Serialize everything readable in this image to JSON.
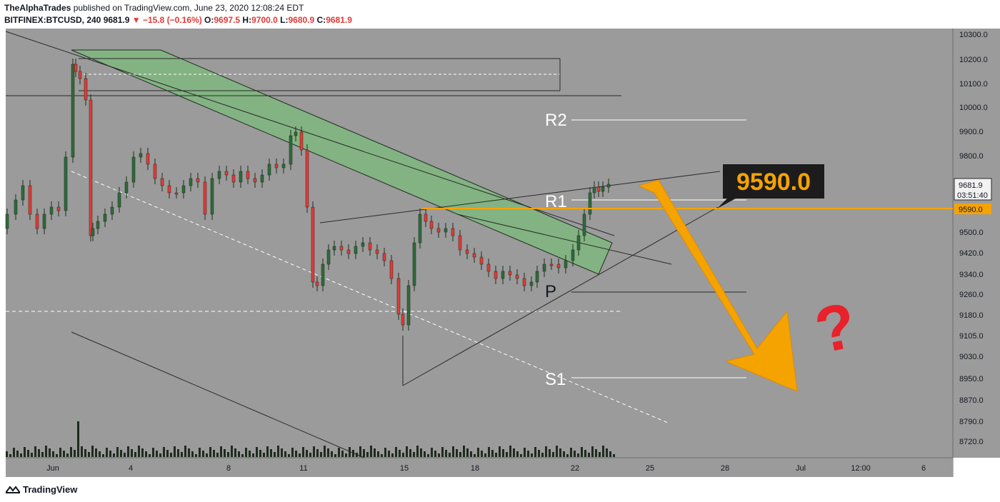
{
  "header": {
    "publisher": "TheAlphaTrades",
    "published_text": "published on TradingView.com, June 23, 2020 12:08:24 EDT",
    "symbol": "BITFINEX:BTCUSD, 240",
    "last": "9681.9",
    "change": "▼ −15.8 (−0.16%)",
    "o_label": "O:",
    "o_value": "9697.5",
    "h_label": "H:",
    "h_value": "9700.0",
    "l_label": "L:",
    "l_value": "9680.9",
    "c_label": "C:",
    "c_value": "9681.9"
  },
  "footer": {
    "brand": "TradingView"
  },
  "colors": {
    "background": "#9b9b9b",
    "up": "#1f2b1f",
    "down": "#e53935",
    "channel": "#7fb77f",
    "orange": "#f5a300",
    "question": "#e8212a"
  },
  "chart_data": {
    "type": "candlestick",
    "y_ticks": [
      "10300.0",
      "10200.0",
      "10100.0",
      "10000.0",
      "9900.0",
      "9800.0",
      "9700.0",
      "9500.0",
      "9420.0",
      "9340.0",
      "9260.0",
      "9180.0",
      "9105.0",
      "9030.0",
      "8950.0",
      "8870.0",
      "8790.0",
      "8720.0"
    ],
    "x_ticks": [
      "Jun",
      "4",
      "8",
      "11",
      "15",
      "18",
      "22",
      "25",
      "28",
      "Jul",
      "12:00",
      "6"
    ],
    "price_tag_last": "9681.9",
    "price_tag_timer": "03:51:40",
    "price_tag_level": "9590.0",
    "callout": "9590.0",
    "labels": {
      "r2": "R2",
      "r1": "R1",
      "p": "P",
      "s1": "S1",
      "question": "?"
    },
    "pivots": {
      "R2": 9945,
      "R1": 9625,
      "P": 9275,
      "S1": 8945
    },
    "key_level": 9590.0,
    "ylim": [
      8680,
      10320
    ]
  }
}
